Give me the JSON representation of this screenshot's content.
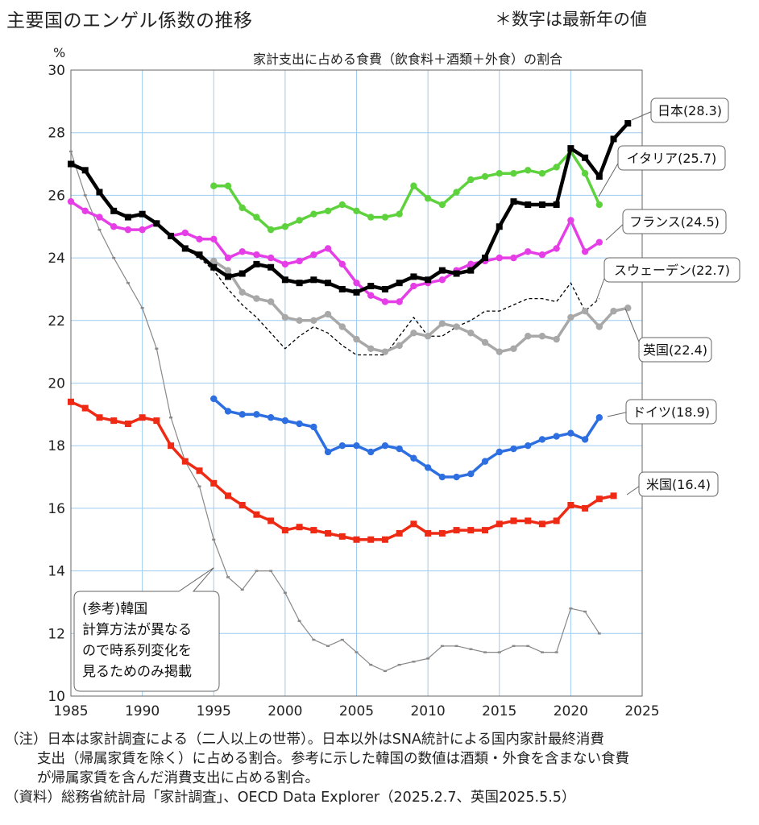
{
  "header": {
    "title": "主要国のエンゲル係数の推移",
    "top_note": "＊数字は最新年の値",
    "unit": "%",
    "subtitle": "家計支出に占める食費（飲食料＋酒類＋外食）の割合"
  },
  "footer": {
    "note_line1": "（注）日本は家計調査による（二人以上の世帯）。日本以外はSNA統計による国内家計最終消費",
    "note_line2": "支出（帰属家賃を除く）に占める割合。参考に示した韓国の数値は酒類・外食を含まない食費",
    "note_line3": "が帰属家賃を含んだ消費支出に占める割合。",
    "source": "（資料）総務省統計局「家計調査」、OECD Data Explorer（2025.2.7、英国2025.5.5）"
  },
  "chart_data": {
    "type": "line",
    "title": "主要国のエンゲル係数の推移",
    "subtitle": "家計支出に占める食費（飲食料＋酒類＋外食）の割合",
    "ylabel": "%",
    "xlim": [
      1985,
      2025
    ],
    "ylim": [
      10,
      30
    ],
    "x_ticks": [
      1985,
      1990,
      1995,
      2000,
      2005,
      2010,
      2015,
      2020,
      2025
    ],
    "y_ticks": [
      10,
      12,
      14,
      16,
      18,
      20,
      22,
      24,
      26,
      28,
      30
    ],
    "grid": true,
    "series": [
      {
        "name": "日本",
        "label": "日本(28.3)",
        "color": "#000000",
        "marker": "square",
        "dash": "",
        "x": [
          1985,
          1986,
          1987,
          1988,
          1989,
          1990,
          1991,
          1992,
          1993,
          1994,
          1995,
          1996,
          1997,
          1998,
          1999,
          2000,
          2001,
          2002,
          2003,
          2004,
          2005,
          2006,
          2007,
          2008,
          2009,
          2010,
          2011,
          2012,
          2013,
          2014,
          2015,
          2016,
          2017,
          2018,
          2019,
          2020,
          2021,
          2022,
          2023,
          2024
        ],
        "y": [
          27.0,
          26.8,
          26.1,
          25.5,
          25.3,
          25.4,
          25.1,
          24.7,
          24.3,
          24.1,
          23.7,
          23.4,
          23.5,
          23.8,
          23.7,
          23.3,
          23.2,
          23.3,
          23.2,
          23.0,
          22.9,
          23.1,
          23.0,
          23.2,
          23.4,
          23.3,
          23.6,
          23.5,
          23.6,
          24.0,
          25.0,
          25.8,
          25.7,
          25.7,
          25.7,
          27.5,
          27.2,
          26.6,
          27.8,
          28.3
        ]
      },
      {
        "name": "イタリア",
        "label": "イタリア(25.7)",
        "color": "#5ed23c",
        "marker": "dot",
        "dash": "",
        "x": [
          1995,
          1996,
          1997,
          1998,
          1999,
          2000,
          2001,
          2002,
          2003,
          2004,
          2005,
          2006,
          2007,
          2008,
          2009,
          2010,
          2011,
          2012,
          2013,
          2014,
          2015,
          2016,
          2017,
          2018,
          2019,
          2020,
          2021,
          2022
        ],
        "y": [
          26.3,
          26.3,
          25.6,
          25.3,
          24.9,
          25.0,
          25.2,
          25.4,
          25.5,
          25.7,
          25.5,
          25.3,
          25.3,
          25.4,
          26.3,
          25.9,
          25.7,
          26.1,
          26.5,
          26.6,
          26.7,
          26.7,
          26.8,
          26.7,
          26.9,
          27.4,
          26.7,
          25.7
        ]
      },
      {
        "name": "フランス",
        "label": "フランス(24.5)",
        "color": "#e63ee6",
        "marker": "dot",
        "dash": "",
        "x": [
          1985,
          1986,
          1987,
          1988,
          1989,
          1990,
          1991,
          1992,
          1993,
          1994,
          1995,
          1996,
          1997,
          1998,
          1999,
          2000,
          2001,
          2002,
          2003,
          2004,
          2005,
          2006,
          2007,
          2008,
          2009,
          2010,
          2011,
          2012,
          2013,
          2014,
          2015,
          2016,
          2017,
          2018,
          2019,
          2020,
          2021,
          2022
        ],
        "y": [
          25.8,
          25.5,
          25.3,
          25.0,
          24.9,
          24.9,
          25.1,
          24.7,
          24.8,
          24.6,
          24.6,
          24.0,
          24.2,
          24.1,
          24.0,
          23.8,
          23.9,
          24.1,
          24.3,
          23.8,
          23.2,
          22.8,
          22.6,
          22.6,
          23.1,
          23.2,
          23.3,
          23.6,
          23.8,
          23.9,
          24.0,
          24.0,
          24.2,
          24.1,
          24.3,
          25.2,
          24.2,
          24.5
        ]
      },
      {
        "name": "スウェーデン",
        "label": "スウェーデン(22.7)",
        "color": "#000000",
        "marker": "none",
        "dash": "4,3",
        "x": [
          1993,
          1994,
          1995,
          1996,
          1997,
          1998,
          1999,
          2000,
          2001,
          2002,
          2003,
          2004,
          2005,
          2006,
          2007,
          2008,
          2009,
          2010,
          2011,
          2012,
          2013,
          2014,
          2015,
          2016,
          2017,
          2018,
          2019,
          2020,
          2021,
          2022
        ],
        "y": [
          24.3,
          24.0,
          23.6,
          23.0,
          22.5,
          22.1,
          21.6,
          21.1,
          21.5,
          21.8,
          21.6,
          21.2,
          20.9,
          20.9,
          20.9,
          21.5,
          22.1,
          21.5,
          21.5,
          21.8,
          22.0,
          22.3,
          22.3,
          22.5,
          22.7,
          22.7,
          22.6,
          23.2,
          22.3,
          22.7
        ]
      },
      {
        "name": "英国",
        "label": "英国(22.4)",
        "color": "#a8a8a8",
        "marker": "dot",
        "dash": "",
        "x": [
          1995,
          1996,
          1997,
          1998,
          1999,
          2000,
          2001,
          2002,
          2003,
          2004,
          2005,
          2006,
          2007,
          2008,
          2009,
          2010,
          2011,
          2012,
          2013,
          2014,
          2015,
          2016,
          2017,
          2018,
          2019,
          2020,
          2021,
          2022,
          2023,
          2024
        ],
        "y": [
          23.9,
          23.6,
          22.9,
          22.7,
          22.6,
          22.1,
          22.0,
          22.0,
          22.2,
          21.8,
          21.4,
          21.1,
          21.0,
          21.2,
          21.6,
          21.5,
          21.9,
          21.8,
          21.6,
          21.3,
          21.0,
          21.1,
          21.5,
          21.5,
          21.4,
          22.1,
          22.3,
          21.8,
          22.3,
          22.4
        ]
      },
      {
        "name": "ドイツ",
        "label": "ドイツ(18.9)",
        "color": "#2d6fe0",
        "marker": "dot",
        "dash": "",
        "x": [
          1995,
          1996,
          1997,
          1998,
          1999,
          2000,
          2001,
          2002,
          2003,
          2004,
          2005,
          2006,
          2007,
          2008,
          2009,
          2010,
          2011,
          2012,
          2013,
          2014,
          2015,
          2016,
          2017,
          2018,
          2019,
          2020,
          2021,
          2022
        ],
        "y": [
          19.5,
          19.1,
          19.0,
          19.0,
          18.9,
          18.8,
          18.7,
          18.6,
          17.8,
          18.0,
          18.0,
          17.8,
          18.0,
          17.9,
          17.6,
          17.3,
          17.0,
          17.0,
          17.1,
          17.5,
          17.8,
          17.9,
          18.0,
          18.2,
          18.3,
          18.4,
          18.2,
          18.9
        ]
      },
      {
        "name": "米国",
        "label": "米国(16.4)",
        "color": "#ee2a14",
        "marker": "square",
        "dash": "",
        "x": [
          1985,
          1986,
          1987,
          1988,
          1989,
          1990,
          1991,
          1992,
          1993,
          1994,
          1995,
          1996,
          1997,
          1998,
          1999,
          2000,
          2001,
          2002,
          2003,
          2004,
          2005,
          2006,
          2007,
          2008,
          2009,
          2010,
          2011,
          2012,
          2013,
          2014,
          2015,
          2016,
          2017,
          2018,
          2019,
          2020,
          2021,
          2022,
          2023
        ],
        "y": [
          19.4,
          19.2,
          18.9,
          18.8,
          18.7,
          18.9,
          18.8,
          18.0,
          17.5,
          17.2,
          16.8,
          16.4,
          16.1,
          15.8,
          15.6,
          15.3,
          15.4,
          15.3,
          15.2,
          15.1,
          15.0,
          15.0,
          15.0,
          15.2,
          15.5,
          15.2,
          15.2,
          15.3,
          15.3,
          15.3,
          15.5,
          15.6,
          15.6,
          15.5,
          15.6,
          16.1,
          16.0,
          16.3,
          16.4
        ]
      },
      {
        "name": "韓国",
        "label": "",
        "color": "#888888",
        "marker": "tick",
        "dash": "",
        "x": [
          1985,
          1986,
          1987,
          1988,
          1989,
          1990,
          1991,
          1992,
          1993,
          1994,
          1995,
          1996,
          1997,
          1998,
          1999,
          2000,
          2001,
          2002,
          2003,
          2004,
          2005,
          2006,
          2007,
          2008,
          2009,
          2010,
          2011,
          2012,
          2013,
          2014,
          2015,
          2016,
          2017,
          2018,
          2019,
          2020,
          2021,
          2022
        ],
        "y": [
          27.4,
          26.0,
          24.9,
          24.0,
          23.2,
          22.4,
          21.1,
          18.9,
          17.5,
          16.7,
          15.0,
          13.8,
          13.4,
          14.0,
          14.0,
          13.3,
          12.4,
          11.8,
          11.6,
          11.8,
          11.4,
          11.0,
          10.8,
          11.0,
          11.1,
          11.2,
          11.6,
          11.6,
          11.5,
          11.4,
          11.4,
          11.6,
          11.6,
          11.4,
          11.4,
          12.8,
          12.7,
          12.0
        ]
      }
    ],
    "korea_note_lines": [
      "(参考)韓国",
      "計算方法が異なる",
      "ので時系列変化を",
      "見るためのみ掲載"
    ]
  }
}
